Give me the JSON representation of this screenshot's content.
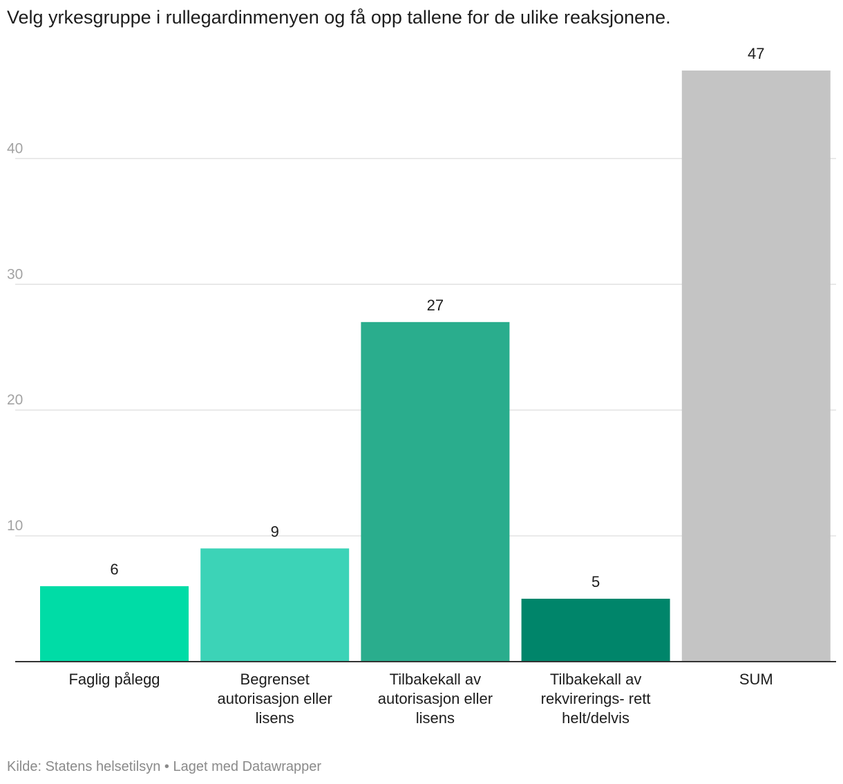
{
  "title": "Velg yrkesgruppe i rullegardinmenyen og få opp tallene for de ulike reaksjonene.",
  "footer": {
    "source_label": "Kilde:",
    "source": "Statens helsetilsyn",
    "separator": "•",
    "credit": "Laget med Datawrapper"
  },
  "chart_data": {
    "type": "bar",
    "categories": [
      [
        "Faglig pålegg"
      ],
      [
        "Begrenset",
        "autorisasjon eller",
        "lisens"
      ],
      [
        "Tilbakekall av",
        "autorisasjon eller",
        "lisens"
      ],
      [
        "Tilbakekall av",
        "rekvirerings- rett",
        "helt/delvis"
      ],
      [
        "SUM"
      ]
    ],
    "values": [
      6,
      9,
      27,
      5,
      47
    ],
    "colors": [
      "#00dca6",
      "#3cd3b7",
      "#2aad8d",
      "#00856a",
      "#c4c4c4"
    ],
    "yticks": [
      10,
      20,
      30,
      40
    ],
    "ylim": [
      0,
      47
    ],
    "grid": true,
    "xlabel": "",
    "ylabel": ""
  }
}
